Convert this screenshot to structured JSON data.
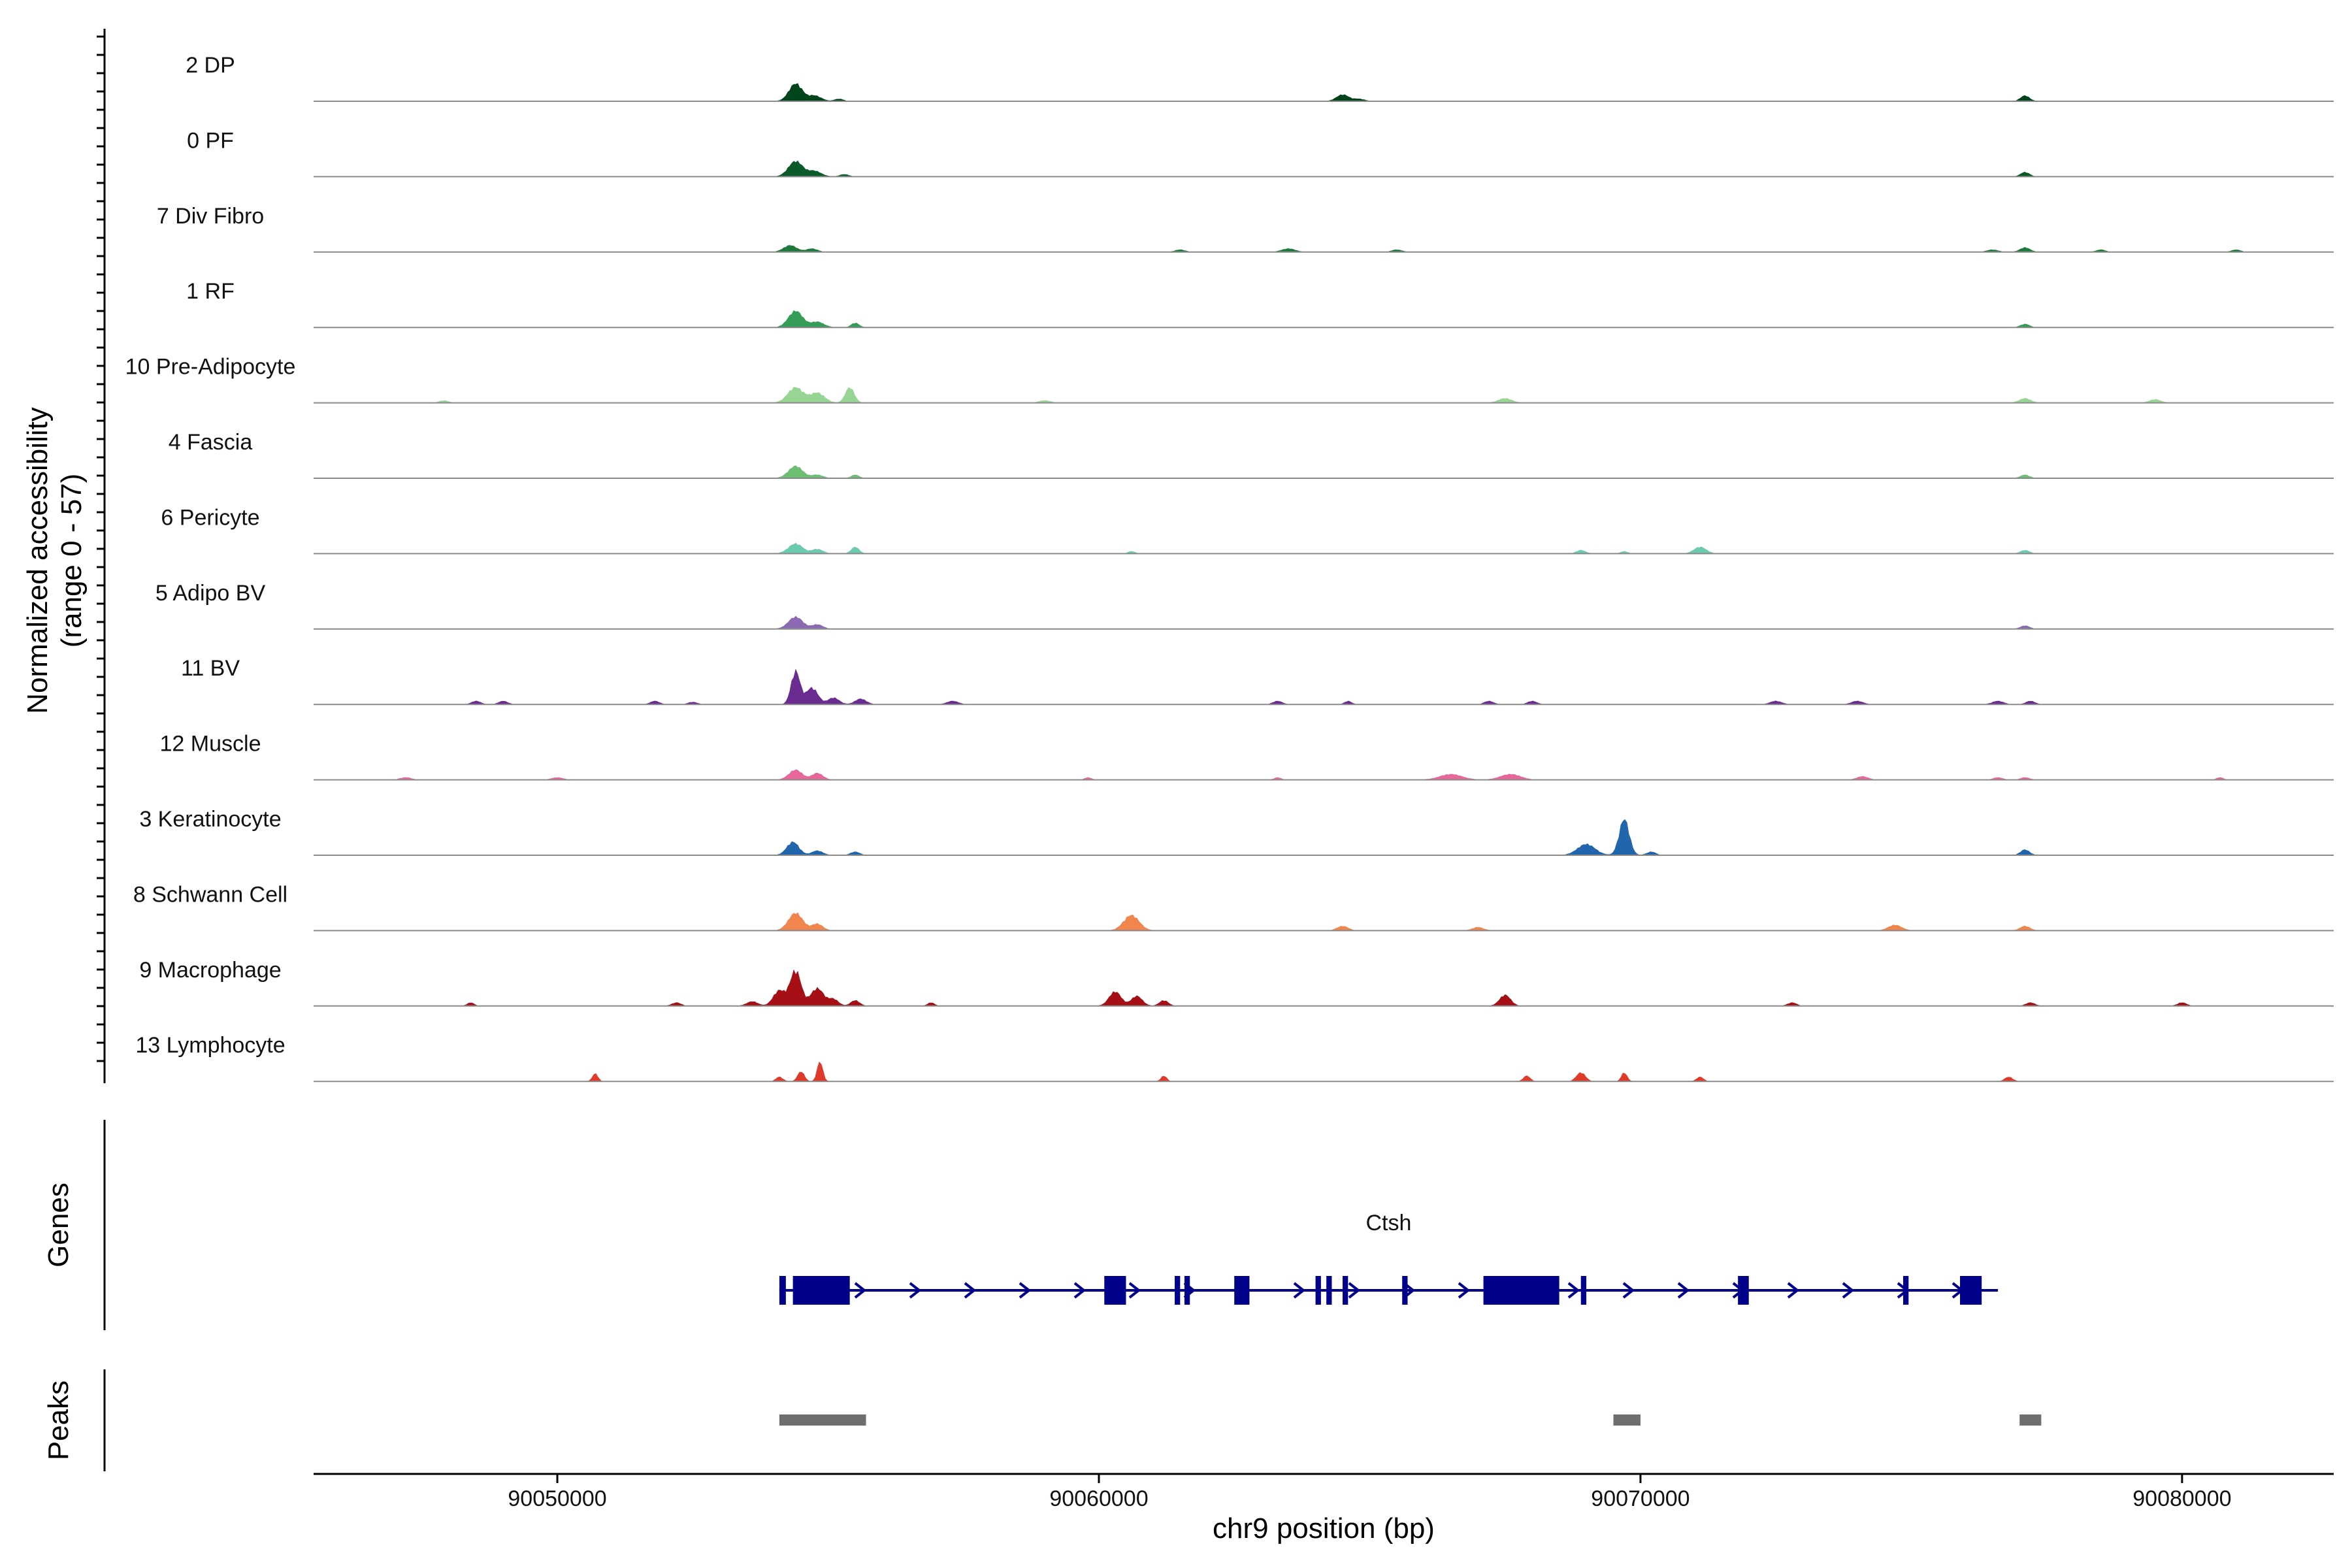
{
  "chart_data": {
    "type": "area",
    "title": "",
    "y_axis_title": "Normalized accessibility",
    "y_axis_subtitle": "(range 0 - 57)",
    "y_range": [
      0,
      57
    ],
    "xlabel": "chr9 position (bp)",
    "xlim": [
      90045500,
      90082800
    ],
    "x_ticks": [
      90050000,
      90060000,
      90070000,
      90080000
    ],
    "x_tick_labels": [
      "90050000",
      "90060000",
      "90070000",
      "90080000"
    ],
    "tracks": [
      {
        "name": "2 DP",
        "color": "#00441b",
        "peaks": [
          [
            90054400,
            16,
            120
          ],
          [
            90054750,
            5,
            120
          ],
          [
            90055200,
            2,
            80
          ],
          [
            90064500,
            6,
            110
          ],
          [
            90064800,
            2,
            100
          ],
          [
            90077100,
            5,
            80
          ]
        ]
      },
      {
        "name": "0 PF",
        "color": "#0b5a2a",
        "peaks": [
          [
            90054400,
            14,
            130
          ],
          [
            90054750,
            5,
            120
          ],
          [
            90055300,
            2,
            80
          ],
          [
            90077100,
            4,
            80
          ]
        ]
      },
      {
        "name": "7 Div Fibro",
        "color": "#1b7a3a",
        "peaks": [
          [
            90054300,
            6,
            120
          ],
          [
            90054700,
            3,
            100
          ],
          [
            90061500,
            2,
            90
          ],
          [
            90063500,
            3,
            120
          ],
          [
            90065500,
            2,
            90
          ],
          [
            90076500,
            2,
            100
          ],
          [
            90077100,
            4,
            90
          ],
          [
            90078500,
            2,
            80
          ],
          [
            90081000,
            2,
            80
          ]
        ]
      },
      {
        "name": "1 RF",
        "color": "#359d58",
        "peaks": [
          [
            90054400,
            15,
            130
          ],
          [
            90054800,
            5,
            120
          ],
          [
            90055500,
            4,
            70
          ],
          [
            90077100,
            3,
            80
          ]
        ]
      },
      {
        "name": "10 Pre-Adipocyte",
        "color": "#98d594",
        "peaks": [
          [
            90047900,
            2,
            80
          ],
          [
            90054400,
            14,
            140
          ],
          [
            90054800,
            9,
            130
          ],
          [
            90055400,
            14,
            80
          ],
          [
            90059000,
            2,
            100
          ],
          [
            90067500,
            4,
            120
          ],
          [
            90077100,
            4,
            100
          ],
          [
            90079500,
            3,
            100
          ]
        ]
      },
      {
        "name": "4 Fascia",
        "color": "#6cbf72",
        "peaks": [
          [
            90054400,
            11,
            130
          ],
          [
            90054800,
            3,
            100
          ],
          [
            90055500,
            3,
            70
          ],
          [
            90077100,
            3,
            80
          ]
        ]
      },
      {
        "name": "6 Pericyte",
        "color": "#6ccaae",
        "peaks": [
          [
            90054400,
            9,
            130
          ],
          [
            90054800,
            4,
            100
          ],
          [
            90055500,
            6,
            70
          ],
          [
            90060600,
            2,
            60
          ],
          [
            90068900,
            3,
            80
          ],
          [
            90069700,
            2,
            60
          ],
          [
            90071100,
            6,
            110
          ],
          [
            90077100,
            3,
            80
          ]
        ]
      },
      {
        "name": "5 Adipo BV",
        "color": "#8a6ab1",
        "peaks": [
          [
            90054400,
            11,
            130
          ],
          [
            90054800,
            4,
            100
          ],
          [
            90077100,
            3,
            80
          ]
        ]
      },
      {
        "name": "11 BV",
        "color": "#6b2c91",
        "peaks": [
          [
            90048500,
            3,
            80
          ],
          [
            90049000,
            3,
            80
          ],
          [
            90051800,
            3,
            80
          ],
          [
            90052500,
            2,
            80
          ],
          [
            90054400,
            30,
            80
          ],
          [
            90054700,
            15,
            110
          ],
          [
            90055100,
            6,
            100
          ],
          [
            90055600,
            5,
            100
          ],
          [
            90057300,
            3,
            100
          ],
          [
            90063300,
            3,
            80
          ],
          [
            90064600,
            3,
            60
          ],
          [
            90067200,
            3,
            80
          ],
          [
            90068000,
            3,
            80
          ],
          [
            90072500,
            3,
            100
          ],
          [
            90074000,
            3,
            100
          ],
          [
            90076600,
            3,
            100
          ],
          [
            90077200,
            3,
            80
          ]
        ]
      },
      {
        "name": "12 Muscle",
        "color": "#e7679a",
        "peaks": [
          [
            90047200,
            2,
            100
          ],
          [
            90050000,
            2,
            100
          ],
          [
            90054400,
            9,
            120
          ],
          [
            90054800,
            6,
            100
          ],
          [
            90059800,
            2,
            60
          ],
          [
            90063300,
            2,
            60
          ],
          [
            90066500,
            5,
            200
          ],
          [
            90067600,
            5,
            180
          ],
          [
            90074100,
            3,
            100
          ],
          [
            90076600,
            2,
            80
          ],
          [
            90077100,
            2,
            80
          ],
          [
            90080700,
            2,
            60
          ]
        ]
      },
      {
        "name": "3 Keratinocyte",
        "color": "#2166ac",
        "peaks": [
          [
            90054350,
            12,
            110
          ],
          [
            90054800,
            4,
            100
          ],
          [
            90055500,
            3,
            80
          ],
          [
            90069000,
            10,
            160
          ],
          [
            90069700,
            33,
            90
          ],
          [
            90070200,
            3,
            80
          ],
          [
            90077100,
            5,
            80
          ]
        ]
      },
      {
        "name": "8 Schwann Cell",
        "color": "#f0864d",
        "peaks": [
          [
            90054400,
            16,
            130
          ],
          [
            90054800,
            6,
            100
          ],
          [
            90060600,
            14,
            140
          ],
          [
            90064500,
            4,
            100
          ],
          [
            90067000,
            3,
            100
          ],
          [
            90074700,
            5,
            120
          ],
          [
            90077100,
            4,
            90
          ]
        ]
      },
      {
        "name": "9 Macrophage",
        "color": "#a50f15",
        "peaks": [
          [
            90048400,
            3,
            60
          ],
          [
            90052200,
            3,
            80
          ],
          [
            90053600,
            4,
            100
          ],
          [
            90054100,
            14,
            110
          ],
          [
            90054400,
            32,
            100
          ],
          [
            90054800,
            16,
            120
          ],
          [
            90055100,
            6,
            90
          ],
          [
            90055500,
            5,
            80
          ],
          [
            90056900,
            3,
            60
          ],
          [
            90060300,
            13,
            110
          ],
          [
            90060700,
            9,
            100
          ],
          [
            90061200,
            5,
            80
          ],
          [
            90067500,
            10,
            100
          ],
          [
            90072800,
            3,
            80
          ],
          [
            90077200,
            3,
            80
          ],
          [
            90080000,
            3,
            80
          ]
        ]
      },
      {
        "name": "13 Lymphocyte",
        "color": "#e03b2a",
        "peaks": [
          [
            90050700,
            7,
            50
          ],
          [
            90054100,
            4,
            60
          ],
          [
            90054500,
            9,
            60
          ],
          [
            90054850,
            18,
            50
          ],
          [
            90061200,
            5,
            50
          ],
          [
            90067900,
            5,
            60
          ],
          [
            90068900,
            8,
            80
          ],
          [
            90069700,
            8,
            50
          ],
          [
            90071100,
            4,
            60
          ],
          [
            90076800,
            4,
            70
          ]
        ]
      }
    ],
    "genes_track_label": "Genes",
    "genes": [
      {
        "name": "Ctsh",
        "color": "#00008b",
        "strand": "+",
        "start": 90054100,
        "end": 90076600,
        "exons": [
          [
            90054100,
            90054220
          ],
          [
            90054350,
            90055400
          ],
          [
            90060100,
            90060500
          ],
          [
            90061400,
            90061500
          ],
          [
            90061580,
            90061680
          ],
          [
            90062500,
            90062780
          ],
          [
            90064000,
            90064100
          ],
          [
            90064200,
            90064300
          ],
          [
            90064500,
            90064600
          ],
          [
            90065600,
            90065700
          ],
          [
            90067100,
            90068500
          ],
          [
            90068900,
            90069000
          ],
          [
            90071800,
            90072000
          ],
          [
            90074850,
            90074950
          ],
          [
            90075900,
            90076300
          ]
        ]
      }
    ],
    "peaks_track_label": "Peaks",
    "peak_regions": [
      [
        90054100,
        90055700
      ],
      [
        90069500,
        90070000
      ],
      [
        90077000,
        90077400
      ]
    ],
    "peak_color": "#6e6e6e",
    "baseline_color": "#8a8a8a"
  }
}
